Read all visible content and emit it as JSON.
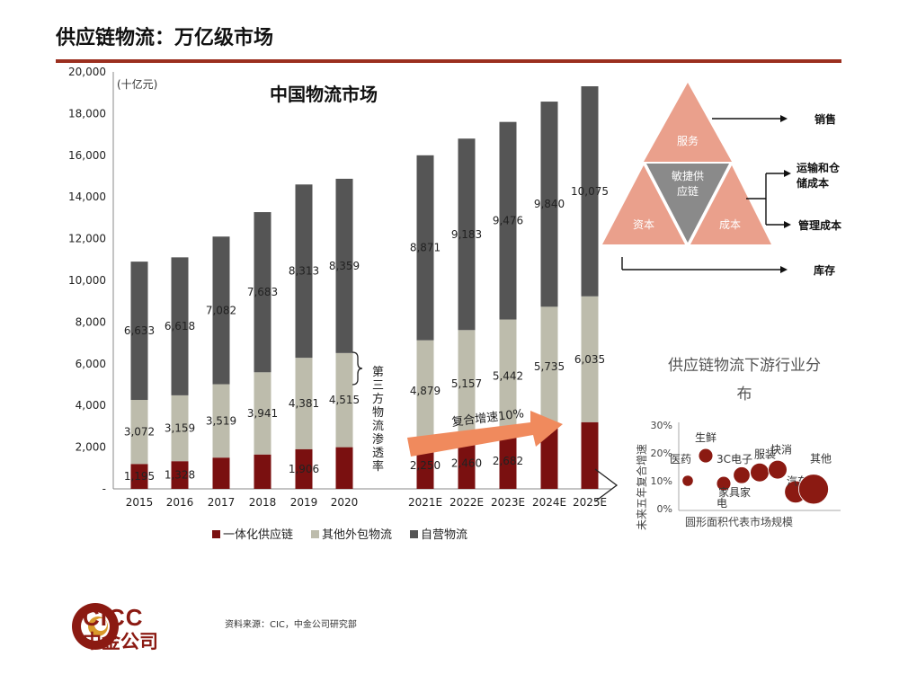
{
  "slide": {
    "title": "供应链物流：万亿级市场",
    "source": "资料来源：CIC，中金公司研究部"
  },
  "logo": {
    "en": "CICC",
    "cn": "中金公司"
  },
  "colors": {
    "accent": "#9b2f1f",
    "integrated": "#7a1010",
    "outsourced": "#bdbcac",
    "selfrun": "#555555",
    "arrow": "#f08a5d",
    "triangle": "#eaa08c",
    "triangle_center": "#8a8a8a"
  },
  "chart_data": [
    {
      "type": "bar",
      "title": "中国物流市场",
      "unit_label": "(十亿元)",
      "categories": [
        "2015",
        "2016",
        "2017",
        "2018",
        "2019",
        "2020",
        "2021E",
        "2022E",
        "2023E",
        "2024E",
        "2025E"
      ],
      "ylim": [
        0,
        20000
      ],
      "yticks": [
        "-",
        "2,000",
        "4,000",
        "6,000",
        "8,000",
        "10,000",
        "12,000",
        "14,000",
        "16,000",
        "18,000",
        "20,000"
      ],
      "stacked": true,
      "series": [
        {
          "name": "一体化供应链",
          "values": [
            1195,
            1328,
            1500,
            1650,
            1906,
            2000,
            2250,
            2460,
            2682,
            3000,
            3200
          ],
          "labels": [
            "1,195",
            "1,328",
            "",
            "",
            "1,906",
            "",
            "2,250",
            "2,460",
            "2,682",
            "",
            ""
          ]
        },
        {
          "name": "其他外包物流",
          "values": [
            3072,
            3159,
            3519,
            3941,
            4381,
            4515,
            4879,
            5157,
            5442,
            5735,
            6035
          ],
          "labels": [
            "3,072",
            "3,159",
            "3,519",
            "3,941",
            "4,381",
            "4,515",
            "4,879",
            "5,157",
            "5,442",
            "5,735",
            "6,035"
          ]
        },
        {
          "name": "自营物流",
          "values": [
            6633,
            6618,
            7082,
            7683,
            8313,
            8359,
            8871,
            9183,
            9476,
            9840,
            10075
          ],
          "labels": [
            "6,633",
            "6,618",
            "7,082",
            "7,683",
            "8,313",
            "8,359",
            "8,871",
            "9,183",
            "9,476",
            "9,840",
            "10,075"
          ]
        }
      ],
      "annotations": {
        "penetration": "第三方物流渗透率",
        "cagr": "复合增速10%"
      },
      "legend": "bottom"
    },
    {
      "type": "scatter",
      "title": "供应链物流下游行业分布",
      "ylabel": "未来五年复合增速",
      "xlabel": "圆形面积代表市场规模",
      "yticks": [
        "0%",
        "10%",
        "20%",
        "30%"
      ],
      "ylim": [
        0,
        30
      ],
      "points": [
        {
          "label": "医药",
          "x": 1,
          "y": 10,
          "size": 1
        },
        {
          "label": "生鲜",
          "x": 2,
          "y": 19,
          "size": 2
        },
        {
          "label": "家具家电",
          "x": 3,
          "y": 9,
          "size": 2
        },
        {
          "label": "3C电子",
          "x": 4,
          "y": 12,
          "size": 3
        },
        {
          "label": "服装",
          "x": 5,
          "y": 13,
          "size": 4
        },
        {
          "label": "快消",
          "x": 6,
          "y": 14,
          "size": 4
        },
        {
          "label": "汽车",
          "x": 7,
          "y": 6,
          "size": 6
        },
        {
          "label": "其他",
          "x": 8,
          "y": 7,
          "size": 12
        }
      ]
    }
  ],
  "diagram": {
    "top": "服务",
    "center": "敏捷供应链",
    "left": "资本",
    "right": "成本",
    "outputs": [
      "销售",
      "运输和仓储成本",
      "管理成本",
      "库存"
    ]
  }
}
